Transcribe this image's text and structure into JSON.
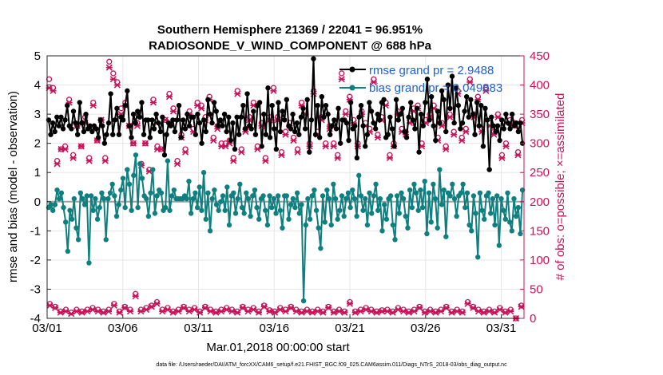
{
  "chart_data": {
    "type": "line",
    "title_line1": "Southern Hemisphere 21369 / 22041 = 96.951%",
    "title_line2": "RADIOSONDE_V_WIND_COMPONENT @ 688 hPa",
    "ylabel": "rmse and bias (model - observation)",
    "y2label": "# of obs: o=possible; ×=assimilated",
    "xlabel": "Mar.01,2018 00:00:00 start",
    "footnote": "data file: /Users/raeder/DAI/ATM_forcXX/CAM6_setup/f.e21.FHIST_BGC.f09_025.CAM6assim.011/Diags_NTrS_2018-03/obs_diag_output.nc",
    "xlim": [
      0,
      31.5
    ],
    "ylim": [
      -4,
      5
    ],
    "y2lim": [
      0,
      450
    ],
    "xticks": [
      0,
      5,
      10,
      15,
      20,
      25,
      30
    ],
    "xtick_labels": [
      "03/01",
      "03/06",
      "03/11",
      "03/16",
      "03/21",
      "03/26",
      "03/31"
    ],
    "yticks": [
      -4,
      -3,
      -2,
      -1,
      0,
      1,
      2,
      3,
      4,
      5
    ],
    "ytick_labels": [
      "-4",
      "-3",
      "-2",
      "-1",
      "0",
      "1",
      "2",
      "3",
      "4",
      "5"
    ],
    "y2ticks": [
      0,
      50,
      100,
      150,
      200,
      250,
      300,
      350,
      400,
      450
    ],
    "y2tick_labels": [
      "0",
      "50",
      "100",
      "150",
      "200",
      "250",
      "300",
      "350",
      "400",
      "450"
    ],
    "grid": true,
    "zero_line": true,
    "colors": {
      "rmse": "#000000",
      "bias": "#0f7f7f",
      "obs": "#c8135a",
      "legend_text": "#1f5fd6",
      "grid": "#e6e6e6",
      "zero": "#a0a0a0"
    },
    "series": [
      {
        "name": "rmse grand pr = 2.9488",
        "legend": "rmse grand pr = 2.9488",
        "values": [
          2.8,
          2.3,
          2.7,
          2.4,
          2.9,
          2.6,
          2.9,
          2.5,
          2.8,
          3.3,
          2.6,
          2.5,
          3.1,
          2.7,
          2.3,
          3.4,
          2.7,
          2.4,
          3.0,
          2.5,
          2.6,
          2.4,
          2.6,
          2.5,
          2.2,
          2.8,
          2.6,
          2.0,
          2.3,
          2.7,
          3.7,
          2.3,
          2.8,
          3.2,
          2.3,
          2.9,
          2.8,
          3.3,
          3.8,
          2.6,
          2.2,
          3.0,
          2.7,
          3.1,
          2.9,
          3.4,
          2.3,
          2.8,
          2.8,
          2.2,
          2.8,
          2.5,
          3.0,
          2.7,
          2.4,
          2.9,
          1.6,
          2.3,
          2.7,
          2.6,
          2.8,
          2.4,
          2.8,
          3.3,
          2.2,
          2.8,
          2.5,
          3.0,
          2.6,
          2.9,
          2.9,
          2.3,
          3.0,
          2.7,
          2.0,
          2.8,
          2.4,
          3.5,
          3.0,
          2.7,
          3.4,
          3.1,
          2.6,
          2.8,
          2.6,
          3.0,
          2.4,
          2.9,
          2.1,
          2.7,
          1.8,
          2.9,
          2.3,
          2.9,
          3.3,
          2.5,
          3.7,
          2.6,
          2.5,
          3.1,
          2.3,
          3.3,
          3.4,
          1.9,
          3.0,
          2.3,
          3.9,
          2.2,
          3.3,
          2.5,
          1.8,
          3.4,
          2.4,
          3.1,
          2.8,
          3.5,
          2.6,
          2.5,
          3.0,
          2.4,
          2.7,
          2.3,
          2.9,
          3.2,
          2.5,
          3.5,
          1.7,
          2.8,
          4.9,
          2.3,
          3.3,
          2.2,
          3.6,
          2.9,
          3.3,
          3.0,
          2.3,
          2.6,
          2.8,
          2.5,
          3.2,
          2.0,
          2.8,
          2.8,
          2.7,
          2.1,
          3.4,
          2.5,
          2.6,
          1.5,
          2.9,
          3.3,
          2.6,
          1.9,
          2.3,
          3.4,
          3.1,
          2.7,
          2.5,
          3.0,
          2.8,
          3.4,
          3.5,
          2.2,
          2.3,
          2.9,
          2.5,
          1.9,
          3.5,
          2.8,
          3.0,
          3.2,
          2.4,
          2.2,
          2.9,
          3.4,
          2.8,
          2.5,
          3.2,
          1.7,
          3.0,
          2.6,
          3.4,
          4.2,
          2.8,
          3.6,
          2.6,
          2.1,
          3.1,
          2.7,
          3.8,
          3.5,
          2.4,
          4.0,
          3.2,
          4.3,
          2.7,
          3.9,
          3.3,
          2.5,
          2.7,
          3.1,
          3.6,
          2.9,
          3.5,
          3.0,
          2.3,
          3.4,
          2.6,
          3.3,
          1.9,
          3.2,
          2.8,
          1.1,
          2.9,
          2.6,
          2.4,
          2.6,
          2.1,
          2.8,
          2.5,
          3.0,
          2.7,
          2.5,
          3.0,
          2.6,
          2.7,
          2.4,
          2.7,
          2.0
        ]
      },
      {
        "name": "bias grand pr = 0.049883",
        "legend": "bias grand pr = 0.049883",
        "values": [
          -0.2,
          -0.1,
          -0.3,
          -0.1,
          0.4,
          0.1,
          0.3,
          -0.2,
          -0.7,
          -1.7,
          -0.3,
          -0.6,
          0.1,
          -0.9,
          -1.3,
          0.3,
          0.1,
          -0.1,
          0.2,
          -2.1,
          0.2,
          -0.3,
          0.1,
          -0.6,
          -0.2,
          0.3,
          0.1,
          -1.3,
          0.1,
          0.3,
          0.6,
          0.2,
          -0.5,
          -0.1,
          0.4,
          0.8,
          -0.2,
          1.1,
          0.6,
          -0.3,
          0.9,
          1.6,
          -0.2,
          1.3,
          0.8,
          0.2,
          0.1,
          -0.5,
          0.3,
          1.1,
          -0.4,
          0.2,
          0.4,
          0.3,
          -0.3,
          -0.2,
          1.4,
          -0.3,
          0.2,
          0.4,
          0.1,
          0.1,
          0.1,
          0.1,
          0.2,
          0.1,
          0.7,
          -0.4,
          0.1,
          0.3,
          -0.2,
          0.5,
          -0.3,
          1.0,
          -0.6,
          0.3,
          -1.0,
          0.1,
          0.4,
          -0.1,
          -0.3,
          0.0,
          0.2,
          -0.3,
          0.5,
          -0.8,
          0.2,
          0.3,
          -0.4,
          0.1,
          0.6,
          -0.2,
          -0.4,
          0.3,
          0.1,
          -0.5,
          0.2,
          0.4,
          -0.2,
          -0.6,
          0.1,
          0.2,
          -0.3,
          -0.8,
          0.2,
          -0.2,
          0.1,
          -0.4,
          0.2,
          -0.3,
          -0.9,
          0.2,
          0.2,
          -0.6,
          -0.1,
          0.1,
          -0.2,
          0.3,
          -0.4,
          -0.1,
          -3.4,
          -0.8,
          0.1,
          -0.6,
          0.2,
          0.4,
          -0.3,
          -0.9,
          -1.6,
          0.2,
          -0.7,
          0.4,
          0.1,
          -0.8,
          0.6,
          0.1,
          -0.6,
          -0.3,
          0.2,
          -0.5,
          0.1,
          0.3,
          -0.2,
          0.4,
          0.1,
          -0.5,
          0.9,
          0.2,
          -0.3,
          0.1,
          -0.8,
          0.3,
          -0.4,
          0.2,
          0.6,
          -0.3,
          0.1,
          -1.0,
          -0.1,
          -0.6,
          0.1,
          0.2,
          -0.8,
          -1.3,
          0.2,
          -0.4,
          0.3,
          0.1,
          -0.5,
          -0.9,
          0.4,
          -0.2,
          0.6,
          0.3,
          -0.3,
          0.4,
          -0.2,
          0.7,
          -1.1,
          0.3,
          -0.7,
          0.6,
          0.1,
          -0.9,
          1.1,
          -0.1,
          0.4,
          -1.2,
          0.3,
          0.2,
          0.6,
          0.1,
          -0.5,
          0.2,
          0.3,
          0.6,
          -0.2,
          0.3,
          -0.8,
          -1.0,
          0.2,
          -0.4,
          -1.9,
          0.3,
          -0.3,
          -0.6,
          0.2,
          0.3,
          -0.4,
          0.1,
          -0.8,
          0.2,
          -1.5,
          0.1,
          -0.3,
          -0.6,
          0.3,
          -0.7,
          -1.0,
          0.1,
          -0.5,
          -0.2,
          -1.1,
          0.4
        ]
      }
    ],
    "obs_possible": [
      410,
      395,
      270,
      290,
      295,
      375,
      280,
      330,
      295,
      345,
      275,
      370,
      305,
      340,
      275,
      440,
      420,
      405,
      360,
      370,
      330,
      300,
      335,
      265,
      300,
      255,
      375,
      295,
      290,
      340,
      385,
      360,
      270,
      315,
      290,
      355,
      325,
      370,
      365,
      345,
      380,
      310,
      330,
      300,
      300,
      305,
      275,
      390,
      290,
      325,
      345,
      370,
      295,
      335,
      275,
      345,
      395,
      345,
      285,
      320,
      335,
      310,
      290,
      370,
      355,
      300,
      390,
      320,
      345,
      300,
      330,
      300,
      280,
      420,
      355,
      380,
      340,
      300,
      355,
      335,
      325,
      410,
      315,
      345,
      370,
      280,
      300,
      355,
      325,
      320,
      340,
      360,
      365,
      300,
      340,
      350,
      365,
      310,
      335,
      295,
      350,
      320,
      390,
      310,
      325,
      410,
      350,
      380,
      325,
      395,
      335,
      320,
      350,
      280,
      300,
      340,
      335,
      285,
      340
    ],
    "obs_assimilated": [
      395,
      390,
      265,
      290,
      290,
      370,
      275,
      330,
      295,
      335,
      270,
      365,
      305,
      340,
      270,
      430,
      410,
      400,
      350,
      365,
      330,
      300,
      330,
      262,
      300,
      252,
      370,
      290,
      290,
      340,
      380,
      355,
      265,
      310,
      285,
      350,
      320,
      365,
      360,
      340,
      375,
      305,
      325,
      295,
      295,
      300,
      270,
      385,
      285,
      320,
      340,
      365,
      290,
      330,
      270,
      340,
      390,
      340,
      280,
      315,
      330,
      305,
      285,
      365,
      350,
      295,
      385,
      315,
      340,
      295,
      325,
      295,
      275,
      410,
      350,
      375,
      335,
      295,
      350,
      330,
      320,
      405,
      310,
      340,
      365,
      275,
      295,
      350,
      320,
      315,
      335,
      355,
      360,
      295,
      335,
      345,
      360,
      305,
      330,
      290,
      345,
      315,
      385,
      305,
      320,
      405,
      345,
      375,
      320,
      390,
      330,
      315,
      345,
      275,
      295,
      335,
      330,
      280,
      335
    ],
    "obs_low_possible": [
      25,
      20,
      12,
      15,
      10,
      15,
      12,
      15,
      18,
      15,
      12,
      15,
      25,
      12,
      20,
      15,
      42,
      15,
      18,
      22,
      28,
      15,
      18,
      12,
      15,
      20,
      15,
      18,
      12,
      20,
      15,
      12,
      15,
      18,
      15,
      12,
      20,
      15,
      18,
      12,
      22,
      14,
      12,
      18,
      15,
      20,
      15,
      12,
      15,
      12,
      15,
      12,
      20,
      12,
      15,
      12,
      28,
      12,
      15,
      18,
      15,
      12,
      14,
      15,
      12,
      18,
      15,
      12,
      15,
      20,
      12,
      15,
      12,
      15,
      20,
      12,
      15,
      12,
      28,
      20,
      15,
      12,
      15,
      12,
      18,
      12,
      15,
      0,
      22
    ],
    "obs_low_assimilated": [
      22,
      18,
      10,
      12,
      8,
      12,
      10,
      12,
      15,
      12,
      10,
      12,
      22,
      10,
      18,
      12,
      38,
      12,
      15,
      20,
      25,
      12,
      15,
      10,
      12,
      18,
      12,
      15,
      10,
      18,
      12,
      10,
      12,
      15,
      12,
      10,
      18,
      12,
      15,
      10,
      20,
      12,
      10,
      15,
      12,
      18,
      12,
      10,
      12,
      10,
      12,
      10,
      18,
      10,
      12,
      10,
      25,
      10,
      12,
      15,
      12,
      10,
      12,
      12,
      10,
      15,
      12,
      10,
      12,
      18,
      10,
      12,
      10,
      12,
      18,
      10,
      12,
      10,
      25,
      18,
      12,
      10,
      12,
      10,
      15,
      10,
      12,
      0,
      20
    ]
  }
}
